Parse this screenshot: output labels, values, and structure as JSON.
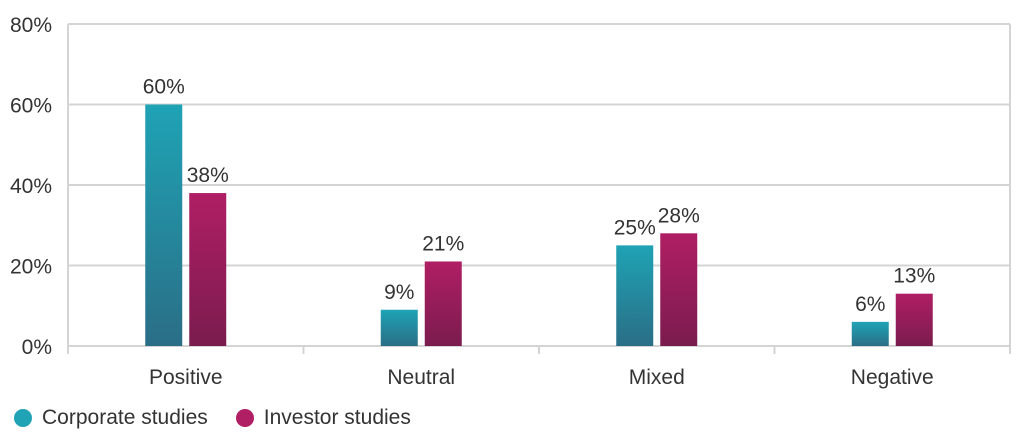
{
  "chart_data": {
    "type": "bar",
    "categories": [
      "Positive",
      "Neutral",
      "Mixed",
      "Negative"
    ],
    "series": [
      {
        "name": "Corporate studies",
        "values": [
          60,
          9,
          25,
          6
        ],
        "labels": [
          "60%",
          "9%",
          "25%",
          "6%"
        ],
        "color_top": "#1fa3b5",
        "color_bottom": "#2a6e86"
      },
      {
        "name": "Investor studies",
        "values": [
          38,
          21,
          28,
          13
        ],
        "labels": [
          "38%",
          "21%",
          "28%",
          "13%"
        ],
        "color_top": "#b01e64",
        "color_bottom": "#7a1c4e"
      }
    ],
    "y_ticks": [
      "0%",
      "20%",
      "40%",
      "60%",
      "80%"
    ],
    "ylim": [
      0,
      80
    ],
    "grid": true,
    "legend_position": "bottom-left"
  },
  "legend": {
    "corporate": "Corporate studies",
    "investor": "Investor studies"
  },
  "colors": {
    "corporate": "#1fa3b5",
    "investor": "#b01e64",
    "grid": "#d4d4d4"
  }
}
